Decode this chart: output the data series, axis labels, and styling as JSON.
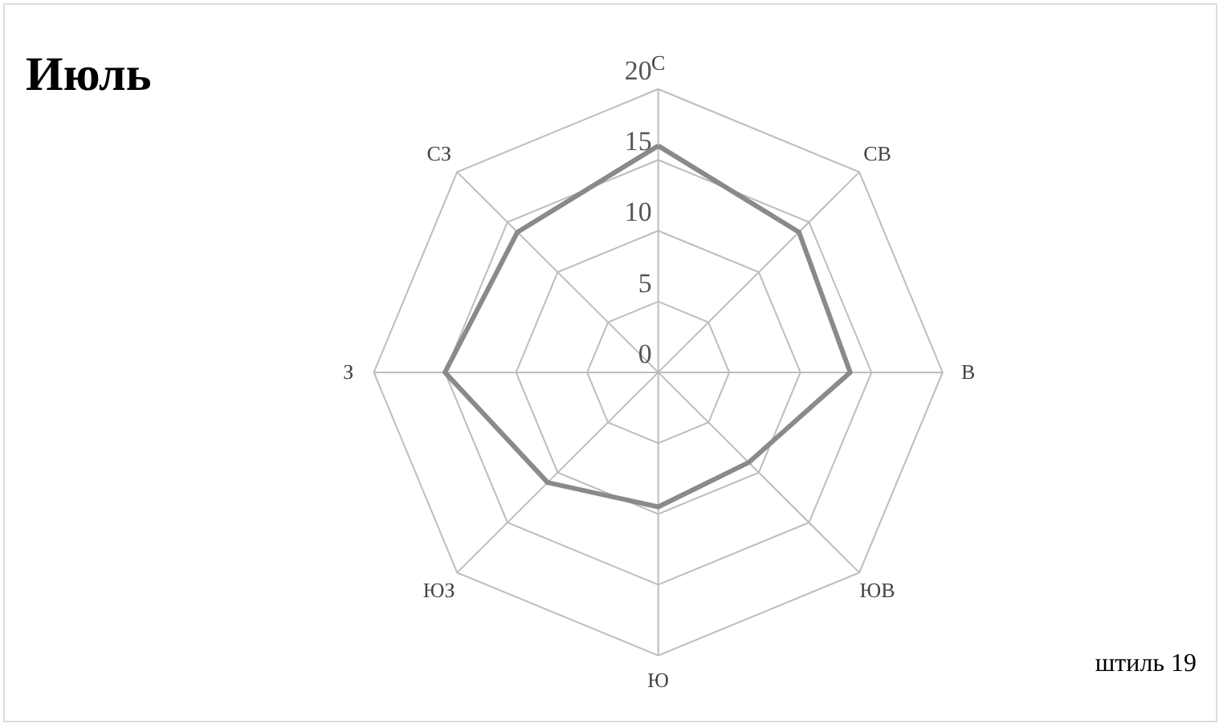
{
  "chart_data": {
    "type": "radar",
    "title": "Июль",
    "categories": [
      "С",
      "СВ",
      "В",
      "ЮВ",
      "Ю",
      "ЮЗ",
      "З",
      "СЗ"
    ],
    "series": [
      {
        "color": "#8a8a8a",
        "values": [
          16,
          14,
          13.5,
          9,
          9.5,
          11,
          15,
          14
        ]
      }
    ],
    "ylim": [
      0,
      20
    ],
    "yticks": [
      0,
      5,
      10,
      15,
      20
    ],
    "grid": true,
    "annotations": [
      "штиль 19"
    ]
  }
}
